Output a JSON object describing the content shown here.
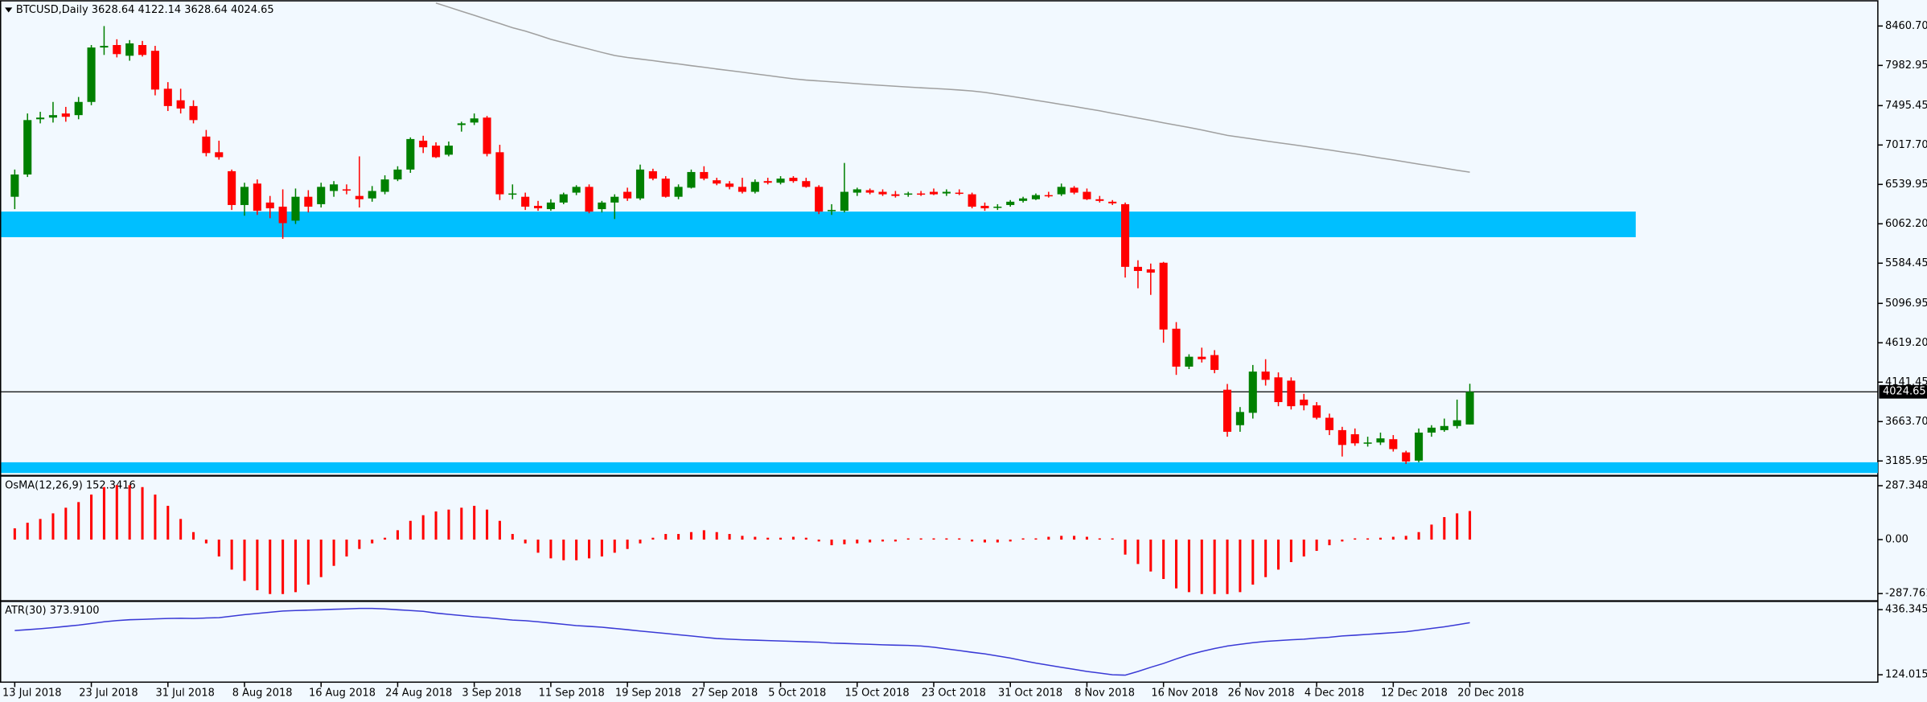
{
  "chart_data": [
    {
      "type": "candlestick",
      "title": "BTCUSD,Daily  3628.64 4122.14 3628.64 4024.65",
      "categories": [
        "13 Jul 2018",
        null,
        null,
        null,
        null,
        null,
        "23 Jul 2018",
        null,
        null,
        null,
        null,
        null,
        "31 Jul 2018",
        null,
        null,
        null,
        null,
        null,
        "8 Aug 2018",
        null,
        null,
        null,
        null,
        null,
        "16 Aug 2018",
        null,
        null,
        null,
        null,
        null,
        "24 Aug 2018",
        null,
        null,
        null,
        null,
        null,
        "3 Sep 2018",
        null,
        null,
        null,
        null,
        null,
        "11 Sep 2018",
        null,
        null,
        null,
        null,
        null,
        "19 Sep 2018",
        null,
        null,
        null,
        null,
        null,
        "27 Sep 2018",
        null,
        null,
        null,
        null,
        null,
        "5 Oct 2018",
        null,
        null,
        null,
        null,
        null,
        "15 Oct 2018",
        null,
        null,
        null,
        null,
        null,
        "23 Oct 2018",
        null,
        null,
        null,
        null,
        null,
        "31 Oct 2018",
        null,
        null,
        null,
        null,
        null,
        "8 Nov 2018",
        null,
        null,
        null,
        null,
        null,
        "16 Nov 2018",
        null,
        null,
        null,
        null,
        null,
        "26 Nov 2018",
        null,
        null,
        null,
        null,
        null,
        "4 Dec 2018",
        null,
        null,
        null,
        null,
        null,
        "12 Dec 2018",
        null,
        null,
        null,
        null,
        null,
        "20 Dec 2018"
      ],
      "candles": [
        [
          6390,
          6720,
          6240,
          6660
        ],
        [
          6660,
          7400,
          6630,
          7320
        ],
        [
          7330,
          7420,
          7280,
          7350
        ],
        [
          7350,
          7540,
          7290,
          7380
        ],
        [
          7400,
          7480,
          7300,
          7360
        ],
        [
          7380,
          7600,
          7330,
          7540
        ],
        [
          7540,
          8230,
          7500,
          8200
        ],
        [
          8200,
          8460,
          8110,
          8220
        ],
        [
          8230,
          8300,
          8080,
          8120
        ],
        [
          8100,
          8290,
          8040,
          8250
        ],
        [
          8230,
          8280,
          8090,
          8110
        ],
        [
          8160,
          8220,
          7620,
          7690
        ],
        [
          7700,
          7780,
          7430,
          7490
        ],
        [
          7560,
          7700,
          7400,
          7460
        ],
        [
          7490,
          7560,
          7280,
          7320
        ],
        [
          7120,
          7200,
          6880,
          6920
        ],
        [
          6930,
          7070,
          6840,
          6870
        ],
        [
          6700,
          6720,
          6230,
          6290
        ],
        [
          6290,
          6560,
          6160,
          6510
        ],
        [
          6550,
          6600,
          6170,
          6220
        ],
        [
          6320,
          6400,
          6130,
          6250
        ],
        [
          6270,
          6480,
          5880,
          6070
        ],
        [
          6100,
          6490,
          6060,
          6390
        ],
        [
          6390,
          6470,
          6200,
          6270
        ],
        [
          6300,
          6560,
          6260,
          6510
        ],
        [
          6460,
          6580,
          6390,
          6540
        ],
        [
          6480,
          6540,
          6420,
          6470
        ],
        [
          6400,
          6880,
          6260,
          6360
        ],
        [
          6370,
          6520,
          6330,
          6460
        ],
        [
          6450,
          6650,
          6420,
          6600
        ],
        [
          6600,
          6760,
          6580,
          6720
        ],
        [
          6720,
          7110,
          6680,
          7090
        ],
        [
          7070,
          7130,
          6920,
          6990
        ],
        [
          7010,
          7050,
          6860,
          6870
        ],
        [
          6900,
          7060,
          6880,
          7010
        ],
        [
          7260,
          7300,
          7180,
          7280
        ],
        [
          7290,
          7400,
          7260,
          7340
        ],
        [
          7350,
          7370,
          6880,
          6910
        ],
        [
          6930,
          7020,
          6350,
          6420
        ],
        [
          6420,
          6540,
          6360,
          6430
        ],
        [
          6390,
          6440,
          6230,
          6270
        ],
        [
          6280,
          6340,
          6220,
          6250
        ],
        [
          6240,
          6360,
          6220,
          6320
        ],
        [
          6320,
          6440,
          6300,
          6420
        ],
        [
          6440,
          6530,
          6410,
          6510
        ],
        [
          6510,
          6540,
          6190,
          6210
        ],
        [
          6240,
          6340,
          6200,
          6320
        ],
        [
          6320,
          6420,
          6120,
          6390
        ],
        [
          6450,
          6500,
          6340,
          6370
        ],
        [
          6370,
          6780,
          6350,
          6720
        ],
        [
          6700,
          6730,
          6590,
          6610
        ],
        [
          6610,
          6640,
          6380,
          6390
        ],
        [
          6390,
          6540,
          6360,
          6510
        ],
        [
          6500,
          6720,
          6490,
          6690
        ],
        [
          6690,
          6760,
          6590,
          6610
        ],
        [
          6590,
          6620,
          6530,
          6550
        ],
        [
          6550,
          6580,
          6480,
          6510
        ],
        [
          6510,
          6620,
          6430,
          6450
        ],
        [
          6450,
          6600,
          6430,
          6570
        ],
        [
          6580,
          6620,
          6540,
          6560
        ],
        [
          6560,
          6640,
          6540,
          6610
        ],
        [
          6620,
          6640,
          6560,
          6580
        ],
        [
          6580,
          6620,
          6500,
          6510
        ],
        [
          6510,
          6530,
          6180,
          6210
        ],
        [
          6220,
          6300,
          6170,
          6230
        ],
        [
          6220,
          6800,
          6200,
          6450
        ],
        [
          6440,
          6500,
          6400,
          6480
        ],
        [
          6470,
          6490,
          6420,
          6440
        ],
        [
          6450,
          6480,
          6400,
          6420
        ],
        [
          6420,
          6460,
          6380,
          6400
        ],
        [
          6420,
          6450,
          6390,
          6430
        ],
        [
          6430,
          6460,
          6400,
          6420
        ],
        [
          6450,
          6490,
          6410,
          6420
        ],
        [
          6430,
          6480,
          6400,
          6450
        ],
        [
          6440,
          6480,
          6410,
          6430
        ],
        [
          6420,
          6440,
          6250,
          6270
        ],
        [
          6280,
          6320,
          6220,
          6250
        ],
        [
          6260,
          6300,
          6230,
          6270
        ],
        [
          6290,
          6350,
          6270,
          6330
        ],
        [
          6340,
          6390,
          6320,
          6370
        ],
        [
          6360,
          6430,
          6350,
          6410
        ],
        [
          6410,
          6450,
          6380,
          6400
        ],
        [
          6420,
          6550,
          6400,
          6510
        ],
        [
          6500,
          6520,
          6420,
          6440
        ],
        [
          6450,
          6490,
          6350,
          6360
        ],
        [
          6360,
          6400,
          6320,
          6340
        ],
        [
          6330,
          6350,
          6290,
          6310
        ],
        [
          6300,
          6320,
          5410,
          5540
        ],
        [
          5540,
          5620,
          5280,
          5490
        ],
        [
          5510,
          5580,
          5200,
          5470
        ],
        [
          5590,
          5600,
          4620,
          4780
        ],
        [
          4790,
          4870,
          4230,
          4330
        ],
        [
          4330,
          4480,
          4300,
          4450
        ],
        [
          4450,
          4560,
          4380,
          4420
        ],
        [
          4470,
          4530,
          4250,
          4290
        ],
        [
          4050,
          4120,
          3480,
          3540
        ],
        [
          3620,
          3840,
          3540,
          3780
        ],
        [
          3770,
          4350,
          3700,
          4270
        ],
        [
          4270,
          4420,
          4100,
          4170
        ],
        [
          4200,
          4260,
          3850,
          3900
        ],
        [
          4160,
          4200,
          3810,
          3850
        ],
        [
          3930,
          4000,
          3800,
          3860
        ],
        [
          3860,
          3900,
          3690,
          3710
        ],
        [
          3710,
          3760,
          3500,
          3560
        ],
        [
          3560,
          3600,
          3240,
          3380
        ],
        [
          3510,
          3580,
          3370,
          3400
        ],
        [
          3400,
          3480,
          3360,
          3410
        ],
        [
          3410,
          3530,
          3380,
          3460
        ],
        [
          3450,
          3500,
          3300,
          3330
        ],
        [
          3290,
          3310,
          3150,
          3180
        ],
        [
          3190,
          3580,
          3170,
          3530
        ],
        [
          3530,
          3620,
          3480,
          3590
        ],
        [
          3560,
          3700,
          3540,
          3610
        ],
        [
          3610,
          3930,
          3580,
          3680
        ],
        [
          3628.64,
          4122.14,
          3628.64,
          4024.65
        ]
      ],
      "up_color": "#008000",
      "down_color": "#ff0000",
      "moving_average": {
        "color": "#a0a0a0",
        "values": [
          null,
          null,
          null,
          null,
          null,
          null,
          null,
          null,
          null,
          null,
          null,
          null,
          null,
          null,
          null,
          null,
          null,
          null,
          null,
          null,
          null,
          null,
          null,
          null,
          null,
          null,
          null,
          null,
          null,
          null,
          null,
          null,
          null,
          8740,
          8690,
          8640,
          8590,
          8540,
          8490,
          8440,
          8400,
          8350,
          8300,
          8260,
          8220,
          8180,
          8140,
          8103,
          8080,
          8060,
          8040,
          8020,
          8000,
          7980,
          7960,
          7940,
          7920,
          7900,
          7880,
          7860,
          7840,
          7820,
          7805,
          7795,
          7785,
          7772,
          7760,
          7750,
          7740,
          7730,
          7720,
          7712,
          7704,
          7695,
          7685,
          7672,
          7656,
          7633,
          7610,
          7585,
          7560,
          7535,
          7510,
          7485,
          7458,
          7432,
          7403,
          7374,
          7345,
          7316,
          7287,
          7258,
          7230,
          7200,
          7168,
          7134,
          7112,
          7090,
          7068,
          7046,
          7024,
          7002,
          6980,
          6957,
          6934,
          6911,
          6886,
          6861,
          6836,
          6811,
          6786,
          6762,
          6737,
          6712,
          6688
        ]
      },
      "zones": [
        {
          "low": 5900,
          "high": 6210,
          "color": "#00bfff"
        },
        {
          "low": 3040,
          "high": 3170,
          "color": "#00bfff"
        }
      ],
      "current_price": 4024.65,
      "ylim": [
        3022,
        8744
      ],
      "yticks": [
        {
          "value": 8460.7,
          "label": "8460.70"
        },
        {
          "value": 7982.95,
          "label": "7982.95"
        },
        {
          "value": 7495.45,
          "label": "7495.45"
        },
        {
          "value": 7017.7,
          "label": "7017.70"
        },
        {
          "value": 6539.95,
          "label": "6539.95"
        },
        {
          "value": 6062.2,
          "label": "6062.20"
        },
        {
          "value": 5584.45,
          "label": "5584.45"
        },
        {
          "value": 5096.95,
          "label": "5096.95"
        },
        {
          "value": 4619.2,
          "label": "4619.20"
        },
        {
          "value": 4141.45,
          "label": "4141.45"
        },
        {
          "value": 3663.7,
          "label": "3663.70"
        },
        {
          "value": 3185.95,
          "label": "3185.95"
        }
      ]
    },
    {
      "type": "bar",
      "title": "OsMA(12,26,9) 152.3416",
      "color": "#ff0000",
      "values": [
        60,
        90,
        110,
        140,
        170,
        200,
        240,
        280,
        290,
        290,
        280,
        240,
        180,
        110,
        40,
        -20,
        -90,
        -160,
        -220,
        -270,
        -290,
        -290,
        -280,
        -240,
        -200,
        -140,
        -90,
        -50,
        -20,
        10,
        50,
        100,
        130,
        150,
        160,
        170,
        180,
        160,
        100,
        30,
        -20,
        -70,
        -100,
        -110,
        -110,
        -100,
        -90,
        -70,
        -50,
        -20,
        10,
        30,
        30,
        40,
        50,
        40,
        30,
        20,
        15,
        10,
        10,
        15,
        10,
        -10,
        -30,
        -25,
        -20,
        -15,
        -10,
        -10,
        -5,
        -5,
        -5,
        -5,
        -5,
        -10,
        -15,
        -15,
        -10,
        -5,
        5,
        15,
        20,
        20,
        15,
        5,
        -5,
        -80,
        -130,
        -170,
        -210,
        -260,
        -280,
        -290,
        -290,
        -290,
        -280,
        -240,
        -200,
        -160,
        -120,
        -90,
        -60,
        -30,
        -10,
        0,
        5,
        10,
        15,
        20,
        40,
        80,
        120,
        140,
        152.3416
      ],
      "ylim": [
        -321,
        334
      ],
      "yticks": [
        287.348,
        {
          "value": 0,
          "label": "0.00"
        },
        -287.7612
      ]
    },
    {
      "type": "line",
      "title": "ATR(30) 373.9100",
      "color": "#3a3ad6",
      "values": [
        336,
        340,
        345,
        350,
        356,
        362,
        370,
        378,
        384,
        388,
        390,
        392,
        394,
        395,
        394,
        396,
        398,
        405,
        412,
        418,
        424,
        430,
        432,
        434,
        436,
        438,
        440,
        442,
        442,
        440,
        436,
        432,
        428,
        420,
        414,
        408,
        402,
        398,
        392,
        386,
        383,
        378,
        372,
        366,
        360,
        356,
        352,
        346,
        340,
        334,
        328,
        322,
        316,
        310,
        304,
        298,
        295,
        292,
        290,
        288,
        286,
        284,
        282,
        280,
        276,
        274,
        272,
        270,
        268,
        266,
        265,
        262,
        256,
        248,
        240,
        232,
        224,
        214,
        204,
        192,
        180,
        170,
        160,
        150,
        140,
        132,
        124,
        122,
        140,
        160,
        178,
        200,
        220,
        236,
        250,
        262,
        270,
        278,
        284,
        288,
        292,
        295,
        300,
        304,
        310,
        314,
        318,
        322,
        326,
        330,
        338,
        346,
        354,
        364,
        373.91
      ],
      "ylim": [
        88.6,
        471.7
      ],
      "yticks": [
        436.3455,
        124.0155
      ]
    }
  ]
}
